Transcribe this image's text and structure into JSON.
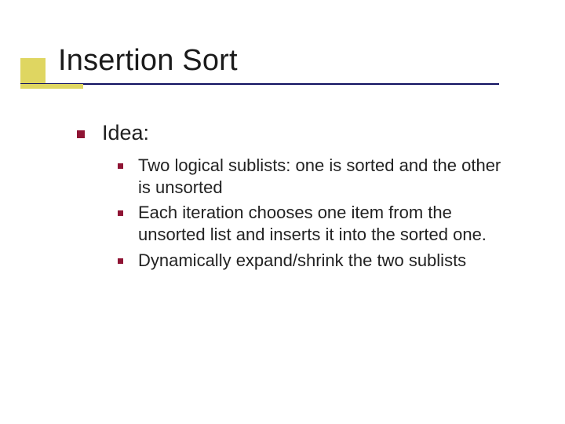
{
  "accent": {
    "color": "#dfd661"
  },
  "underline": {
    "color": "#101060"
  },
  "bullet": {
    "color": "#8f1434"
  },
  "title": "Insertion Sort",
  "idea_label": "Idea:",
  "points": [
    "Two logical sublists: one is sorted and the other is unsorted",
    "Each iteration chooses one item from the unsorted list and inserts it into the sorted one.",
    "Dynamically expand/shrink the two sublists"
  ]
}
